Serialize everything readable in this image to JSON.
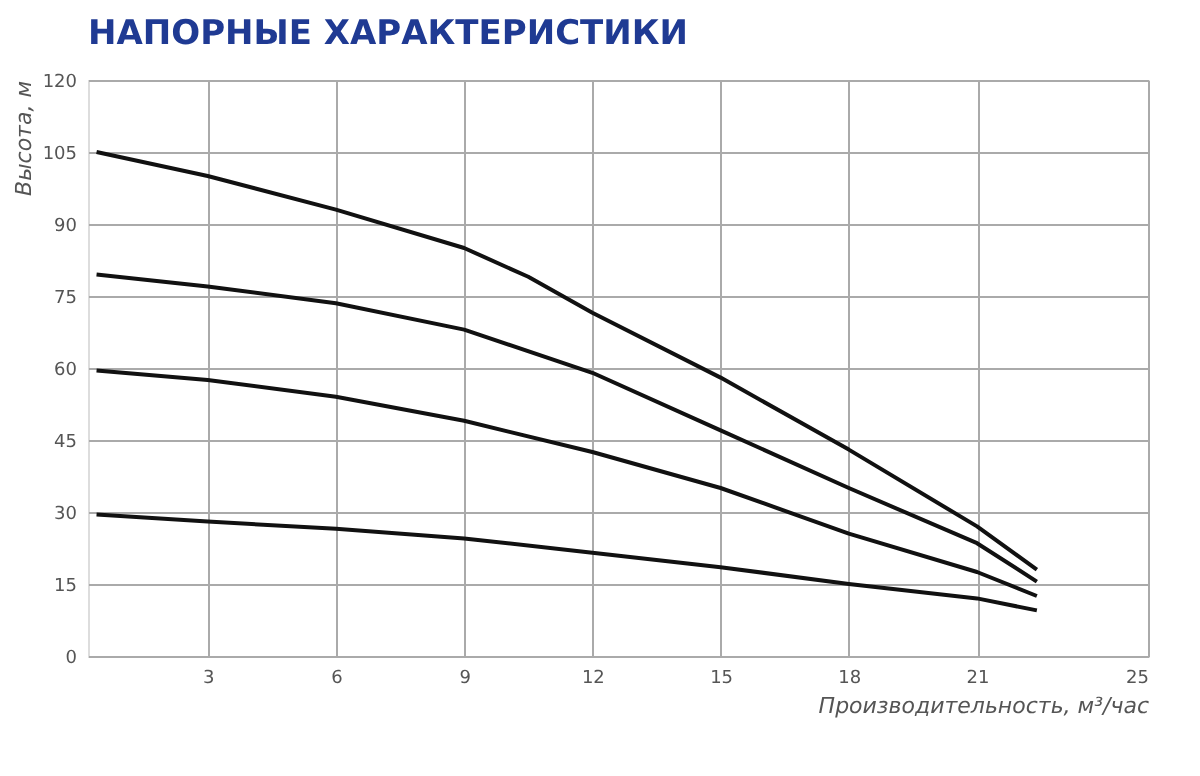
{
  "chart_data": {
    "type": "line",
    "title": "НАПОРНЫЕ ХАРАКТЕРИСТИКИ",
    "xlabel": "Производительность, м³/час",
    "ylabel": "Высота, м",
    "xlim": [
      0.2,
      25
    ],
    "xticks": [
      3,
      6,
      9,
      12,
      15,
      18,
      21,
      25
    ],
    "ylim": [
      0,
      120
    ],
    "yticks": [
      0,
      15,
      30,
      45,
      60,
      75,
      90,
      105,
      120
    ],
    "grid": true,
    "marker": "none",
    "line_style": "solid",
    "series": [
      {
        "color": "#111111",
        "x": [
          0.4,
          3,
          6,
          9,
          10.5,
          12,
          15,
          18,
          21,
          22.4
        ],
        "values": [
          105,
          100,
          93,
          85,
          79,
          71.5,
          58,
          43,
          27,
          18
        ]
      },
      {
        "color": "#111111",
        "x": [
          0.4,
          3,
          6,
          9,
          12,
          15,
          18,
          21,
          22.4
        ],
        "values": [
          79.5,
          77,
          73.5,
          68,
          59,
          47,
          35,
          23.5,
          15.5
        ]
      },
      {
        "color": "#111111",
        "x": [
          0.4,
          3,
          6,
          9,
          12,
          15,
          18,
          21,
          22.4
        ],
        "values": [
          59.5,
          57.5,
          54,
          49,
          42.5,
          35,
          25.5,
          17.5,
          12.5
        ]
      },
      {
        "color": "#111111",
        "x": [
          0.4,
          3,
          6,
          9,
          12,
          15,
          18,
          21,
          22.4
        ],
        "values": [
          29.5,
          28,
          26.5,
          24.5,
          21.5,
          18.5,
          15,
          12,
          9.5
        ]
      }
    ]
  }
}
